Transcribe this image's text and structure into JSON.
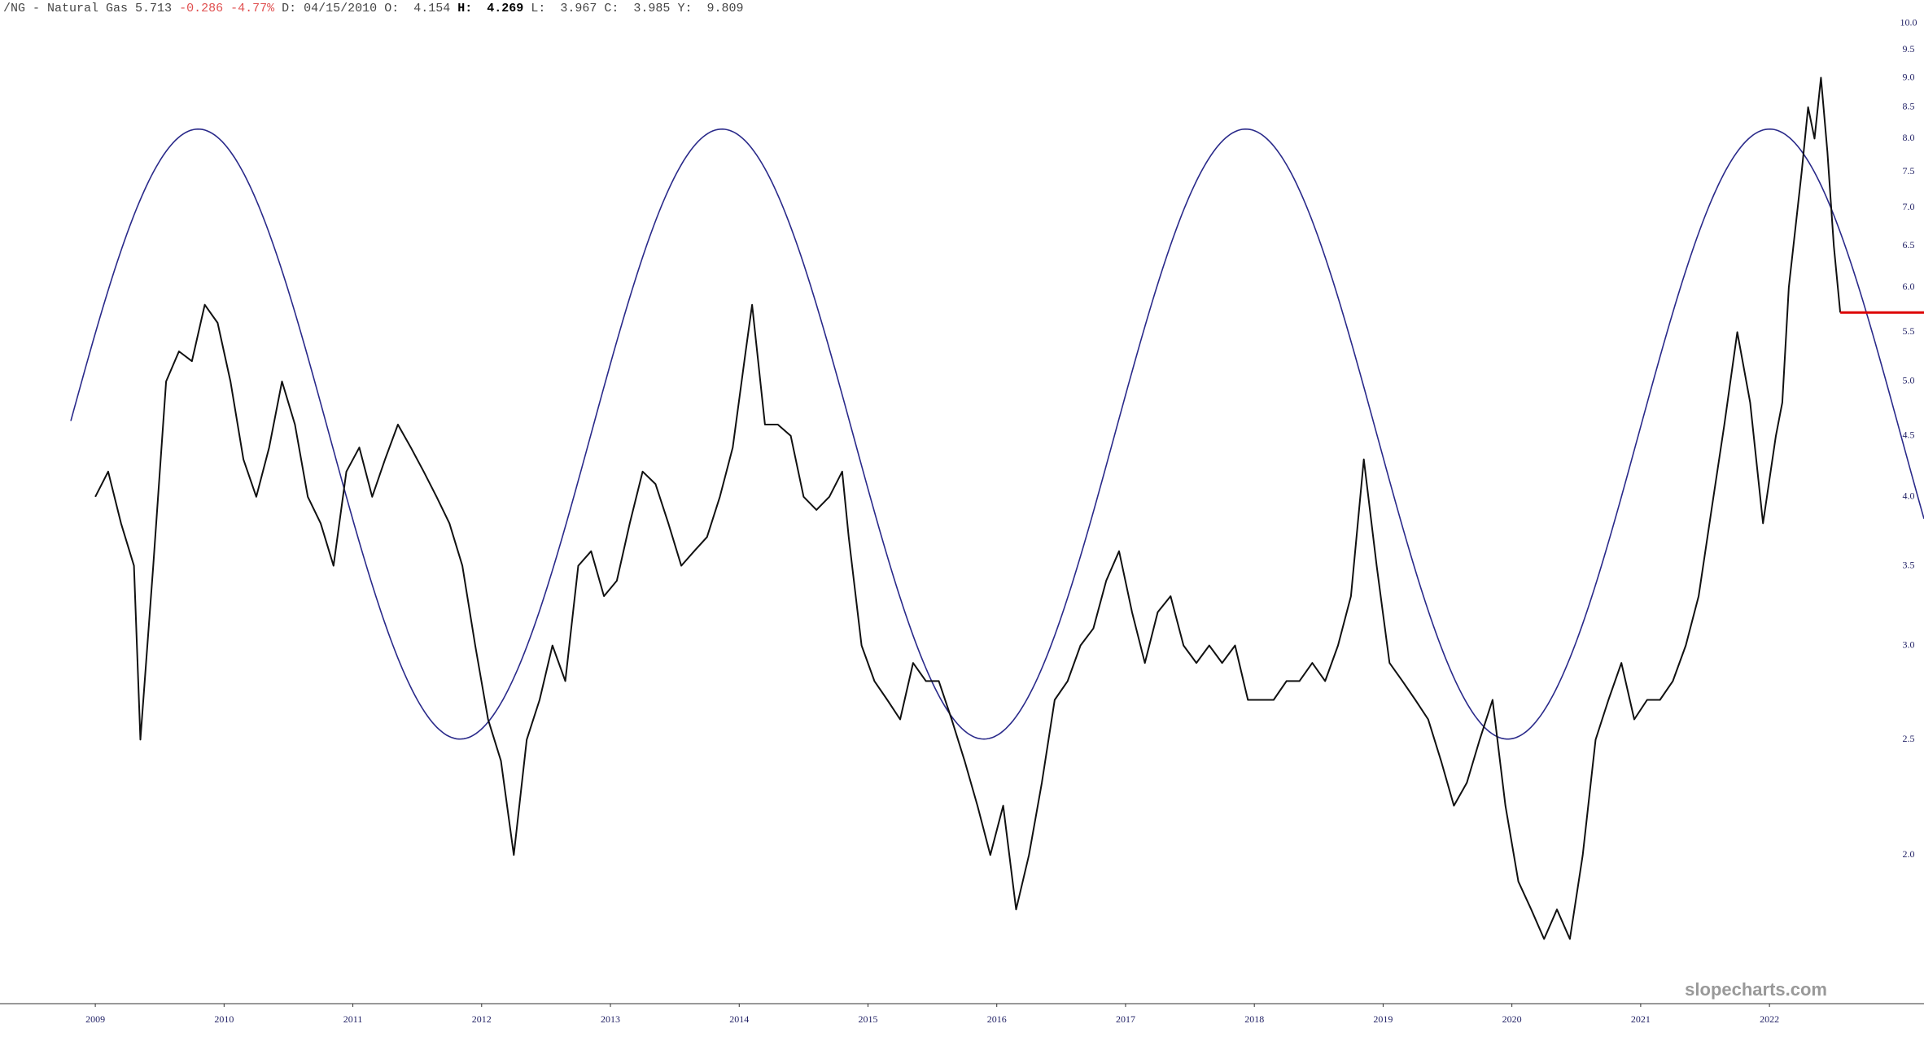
{
  "chart_data": {
    "type": "line",
    "title": "/NG - Natural Gas",
    "header": {
      "last": "5.713",
      "change": "-0.286",
      "change_pct": "-4.77%",
      "date_label": "D:",
      "date": "04/15/2010",
      "open_label": "O:",
      "open": "4.154",
      "high_label": "H:",
      "high": "4.269",
      "low_label": "L:",
      "low": "3.967",
      "close_label": "C:",
      "close": "3.985",
      "y_label": "Y:",
      "y": "9.809"
    },
    "watermark": "slopecharts.com",
    "last_value": 5.713,
    "last_color": "#dd0000",
    "log_y": true,
    "grid": false,
    "xlim": [
      2008.26,
      2023.2
    ],
    "xticks": [
      2009,
      2010,
      2011,
      2012,
      2013,
      2014,
      2015,
      2016,
      2017,
      2018,
      2019,
      2020,
      2021,
      2022
    ],
    "ylim": [
      1.5,
      10.46
    ],
    "yticks": [
      {
        "value": 2,
        "label": "2.0"
      },
      {
        "value": 2.5,
        "label": "2.5"
      },
      {
        "value": 3,
        "label": "3.0"
      },
      {
        "value": 3.5,
        "label": "3.5"
      },
      {
        "value": 4,
        "label": "4.0"
      },
      {
        "value": 4.5,
        "label": "4.5"
      },
      {
        "value": 5,
        "label": "5.0"
      },
      {
        "value": 5.5,
        "label": "5.5"
      },
      {
        "value": 6,
        "label": "6.0"
      },
      {
        "value": 6.5,
        "label": "6.5"
      },
      {
        "value": 7,
        "label": "7.0"
      },
      {
        "value": 7.5,
        "label": "7.5"
      },
      {
        "value": 8,
        "label": "8.0"
      },
      {
        "value": 8.5,
        "label": "8.5"
      },
      {
        "value": 9,
        "label": "9.0"
      },
      {
        "value": 9.5,
        "label": "9.5"
      },
      {
        "value": 10,
        "label": "10.0"
      }
    ],
    "series": [
      {
        "name": "/NG",
        "color": "#111111",
        "x": [
          2009.0,
          2009.1,
          2009.2,
          2009.3,
          2009.35,
          2009.45,
          2009.55,
          2009.65,
          2009.75,
          2009.85,
          2009.95,
          2010.05,
          2010.15,
          2010.25,
          2010.35,
          2010.45,
          2010.55,
          2010.65,
          2010.75,
          2010.85,
          2010.95,
          2011.05,
          2011.15,
          2011.25,
          2011.35,
          2011.45,
          2011.55,
          2011.65,
          2011.75,
          2011.85,
          2011.95,
          2012.05,
          2012.15,
          2012.25,
          2012.35,
          2012.45,
          2012.55,
          2012.65,
          2012.75,
          2012.85,
          2012.95,
          2013.05,
          2013.15,
          2013.25,
          2013.35,
          2013.45,
          2013.55,
          2013.65,
          2013.75,
          2013.85,
          2013.95,
          2014.05,
          2014.1,
          2014.2,
          2014.3,
          2014.4,
          2014.5,
          2014.6,
          2014.7,
          2014.8,
          2014.85,
          2014.95,
          2015.05,
          2015.15,
          2015.25,
          2015.35,
          2015.45,
          2015.55,
          2015.65,
          2015.75,
          2015.85,
          2015.95,
          2016.05,
          2016.15,
          2016.25,
          2016.35,
          2016.45,
          2016.55,
          2016.65,
          2016.75,
          2016.85,
          2016.95,
          2017.05,
          2017.15,
          2017.25,
          2017.35,
          2017.45,
          2017.55,
          2017.65,
          2017.75,
          2017.85,
          2017.95,
          2018.05,
          2018.15,
          2018.25,
          2018.35,
          2018.45,
          2018.55,
          2018.65,
          2018.75,
          2018.85,
          2018.95,
          2019.05,
          2019.15,
          2019.25,
          2019.35,
          2019.45,
          2019.55,
          2019.65,
          2019.75,
          2019.85,
          2019.95,
          2020.05,
          2020.15,
          2020.25,
          2020.35,
          2020.45,
          2020.55,
          2020.65,
          2020.75,
          2020.85,
          2020.95,
          2021.05,
          2021.15,
          2021.25,
          2021.35,
          2021.45,
          2021.55,
          2021.65,
          2021.75,
          2021.85,
          2021.95,
          2022.05,
          2022.1,
          2022.15,
          2022.25,
          2022.3,
          2022.35,
          2022.4,
          2022.45,
          2022.5,
          2022.55
        ],
        "values": [
          4.0,
          4.2,
          3.8,
          3.5,
          2.5,
          3.5,
          5.0,
          5.3,
          5.2,
          5.8,
          5.6,
          5.0,
          4.3,
          4.0,
          4.4,
          5.0,
          4.6,
          4.0,
          3.8,
          3.5,
          4.2,
          4.4,
          4.0,
          4.3,
          4.6,
          4.4,
          4.2,
          4.0,
          3.8,
          3.5,
          3.0,
          2.6,
          2.4,
          2.0,
          2.5,
          2.7,
          3.0,
          2.8,
          3.5,
          3.6,
          3.3,
          3.4,
          3.8,
          4.2,
          4.1,
          3.8,
          3.5,
          3.6,
          3.7,
          4.0,
          4.4,
          5.3,
          5.8,
          4.6,
          4.6,
          4.5,
          4.0,
          3.9,
          4.0,
          4.2,
          3.7,
          3.0,
          2.8,
          2.7,
          2.6,
          2.9,
          2.8,
          2.8,
          2.6,
          2.4,
          2.2,
          2.0,
          2.2,
          1.8,
          2.0,
          2.3,
          2.7,
          2.8,
          3.0,
          3.1,
          3.4,
          3.6,
          3.2,
          2.9,
          3.2,
          3.3,
          3.0,
          2.9,
          3.0,
          2.9,
          3.0,
          2.7,
          2.7,
          2.7,
          2.8,
          2.8,
          2.9,
          2.8,
          3.0,
          3.3,
          4.3,
          3.5,
          2.9,
          2.8,
          2.7,
          2.6,
          2.4,
          2.2,
          2.3,
          2.5,
          2.7,
          2.2,
          1.9,
          1.8,
          1.7,
          1.8,
          1.7,
          2.0,
          2.5,
          2.7,
          2.9,
          2.6,
          2.7,
          2.7,
          2.8,
          3.0,
          3.3,
          3.9,
          4.6,
          5.5,
          4.8,
          3.8,
          4.5,
          4.8,
          6.0,
          7.5,
          8.5,
          8.0,
          9.0,
          7.8,
          6.5,
          5.713
        ]
      }
    ]
  }
}
